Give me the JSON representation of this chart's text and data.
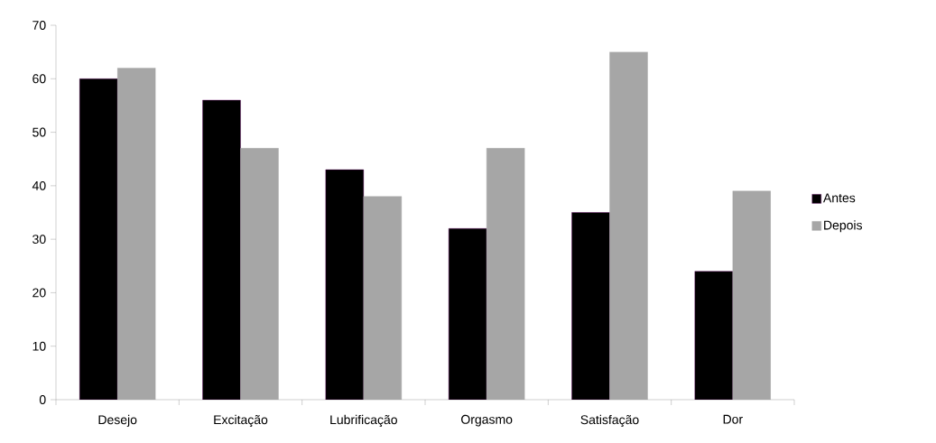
{
  "chart_data": {
    "type": "bar",
    "categories": [
      "Desejo",
      "Excitação",
      "Lubrificação",
      "Orgasmo",
      "Satisfação",
      "Dor"
    ],
    "series": [
      {
        "name": "Antes",
        "color": "#000000",
        "values": [
          60,
          56,
          43,
          32,
          35,
          24
        ]
      },
      {
        "name": "Depois",
        "color": "#a6a6a6",
        "values": [
          62,
          47,
          38,
          47,
          65,
          39
        ]
      }
    ],
    "ylim": [
      0,
      70
    ],
    "yticks": [
      0,
      10,
      20,
      30,
      40,
      50,
      60,
      70
    ],
    "legend": "right"
  }
}
